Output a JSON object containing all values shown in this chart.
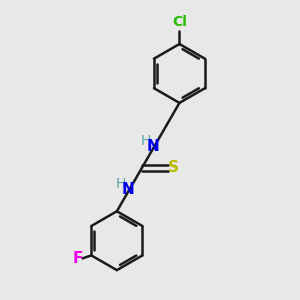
{
  "background_color": "#e8e8e8",
  "bond_color": "#1a1a1a",
  "bond_width": 1.8,
  "atoms": {
    "Cl": {
      "color": "#22bb00",
      "fontsize": 10
    },
    "N": {
      "color": "#0000ee",
      "fontsize": 11
    },
    "H": {
      "color": "#55aaaa",
      "fontsize": 10
    },
    "S": {
      "color": "#bbbb00",
      "fontsize": 11
    },
    "F": {
      "color": "#ee00ee",
      "fontsize": 11
    }
  },
  "figsize": [
    3.0,
    3.0
  ],
  "dpi": 100,
  "xlim": [
    0,
    10
  ],
  "ylim": [
    0,
    10
  ]
}
